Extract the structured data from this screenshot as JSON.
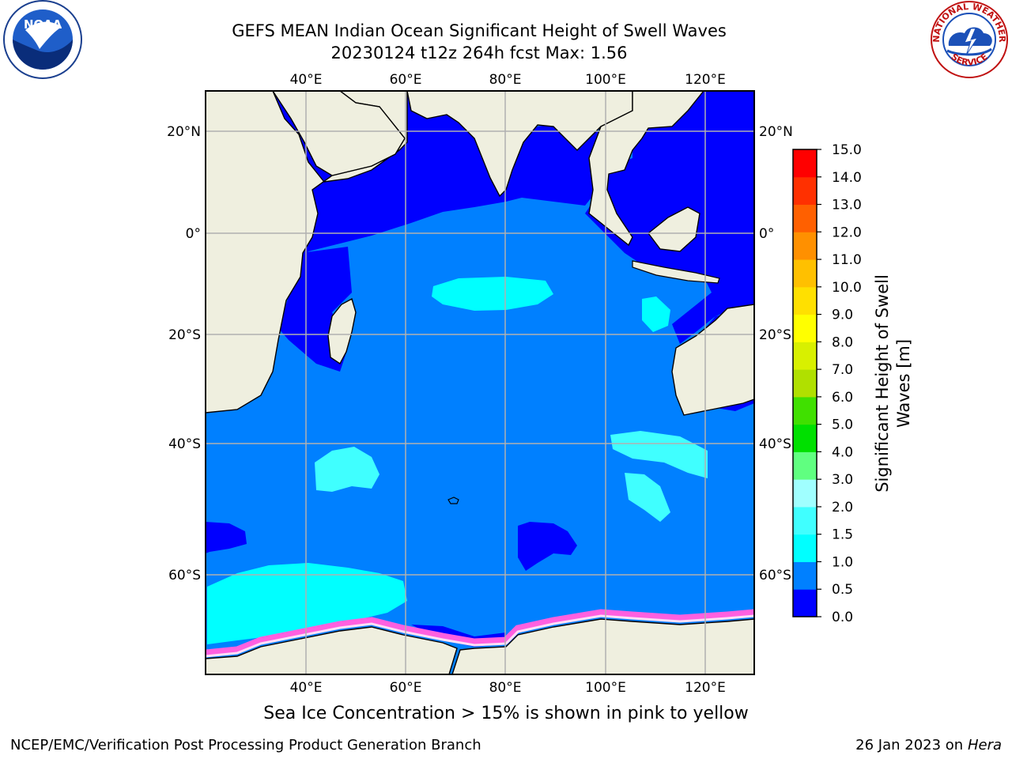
{
  "title_line1": "GEFS MEAN Indian Ocean Significant Height of Swell Waves",
  "title_line2": "20230124 t12z 264h fcst   Max: 1.56",
  "top_lon_labels": [
    "40°E",
    "60°E",
    "80°E",
    "100°E",
    "120°E"
  ],
  "bottom_lon_labels": [
    "40°E",
    "60°E",
    "80°E",
    "100°E",
    "120°E"
  ],
  "left_lat_labels": [
    "20°N",
    "0°",
    "20°S",
    "40°S",
    "60°S"
  ],
  "right_lat_labels": [
    "20°N",
    "0°",
    "20°S",
    "40°S",
    "60°S"
  ],
  "colorbar": {
    "label_line1": "Significant Height of Swell",
    "label_line2": "Waves [m]",
    "ticks": [
      "0.0",
      "0.5",
      "1.0",
      "1.5",
      "2.0",
      "3.0",
      "4.0",
      "5.0",
      "6.0",
      "7.0",
      "8.0",
      "9.0",
      "10.0",
      "11.0",
      "12.0",
      "13.0",
      "14.0",
      "15.0"
    ],
    "colors": [
      "#0000ff",
      "#0080ff",
      "#00ffff",
      "#40ffff",
      "#a0ffff",
      "#60ff80",
      "#00e000",
      "#40e000",
      "#b0e000",
      "#d8f000",
      "#ffff00",
      "#ffe000",
      "#ffc000",
      "#ff9000",
      "#ff6000",
      "#ff3000",
      "#ff0000"
    ]
  },
  "map_colors": {
    "land": "#efefdf",
    "ocean_low": "#0000ff",
    "ocean_mid": "#0080ff",
    "ocean_high": "#00ffff",
    "ice_pink": "#ff60e0",
    "ice_yellow": "#ffff60"
  },
  "footer_note": "Sea Ice Concentration > 15% is shown in pink to yellow",
  "credit": "NCEP/EMC/Verification Post Processing Product Generation Branch",
  "date_text": "26 Jan 2023 on ",
  "date_machine": "Hera",
  "logos": {
    "noaa_text": "NOAA",
    "nws_top": "NATIONAL WEATHER",
    "nws_bottom": "SERVICE"
  }
}
